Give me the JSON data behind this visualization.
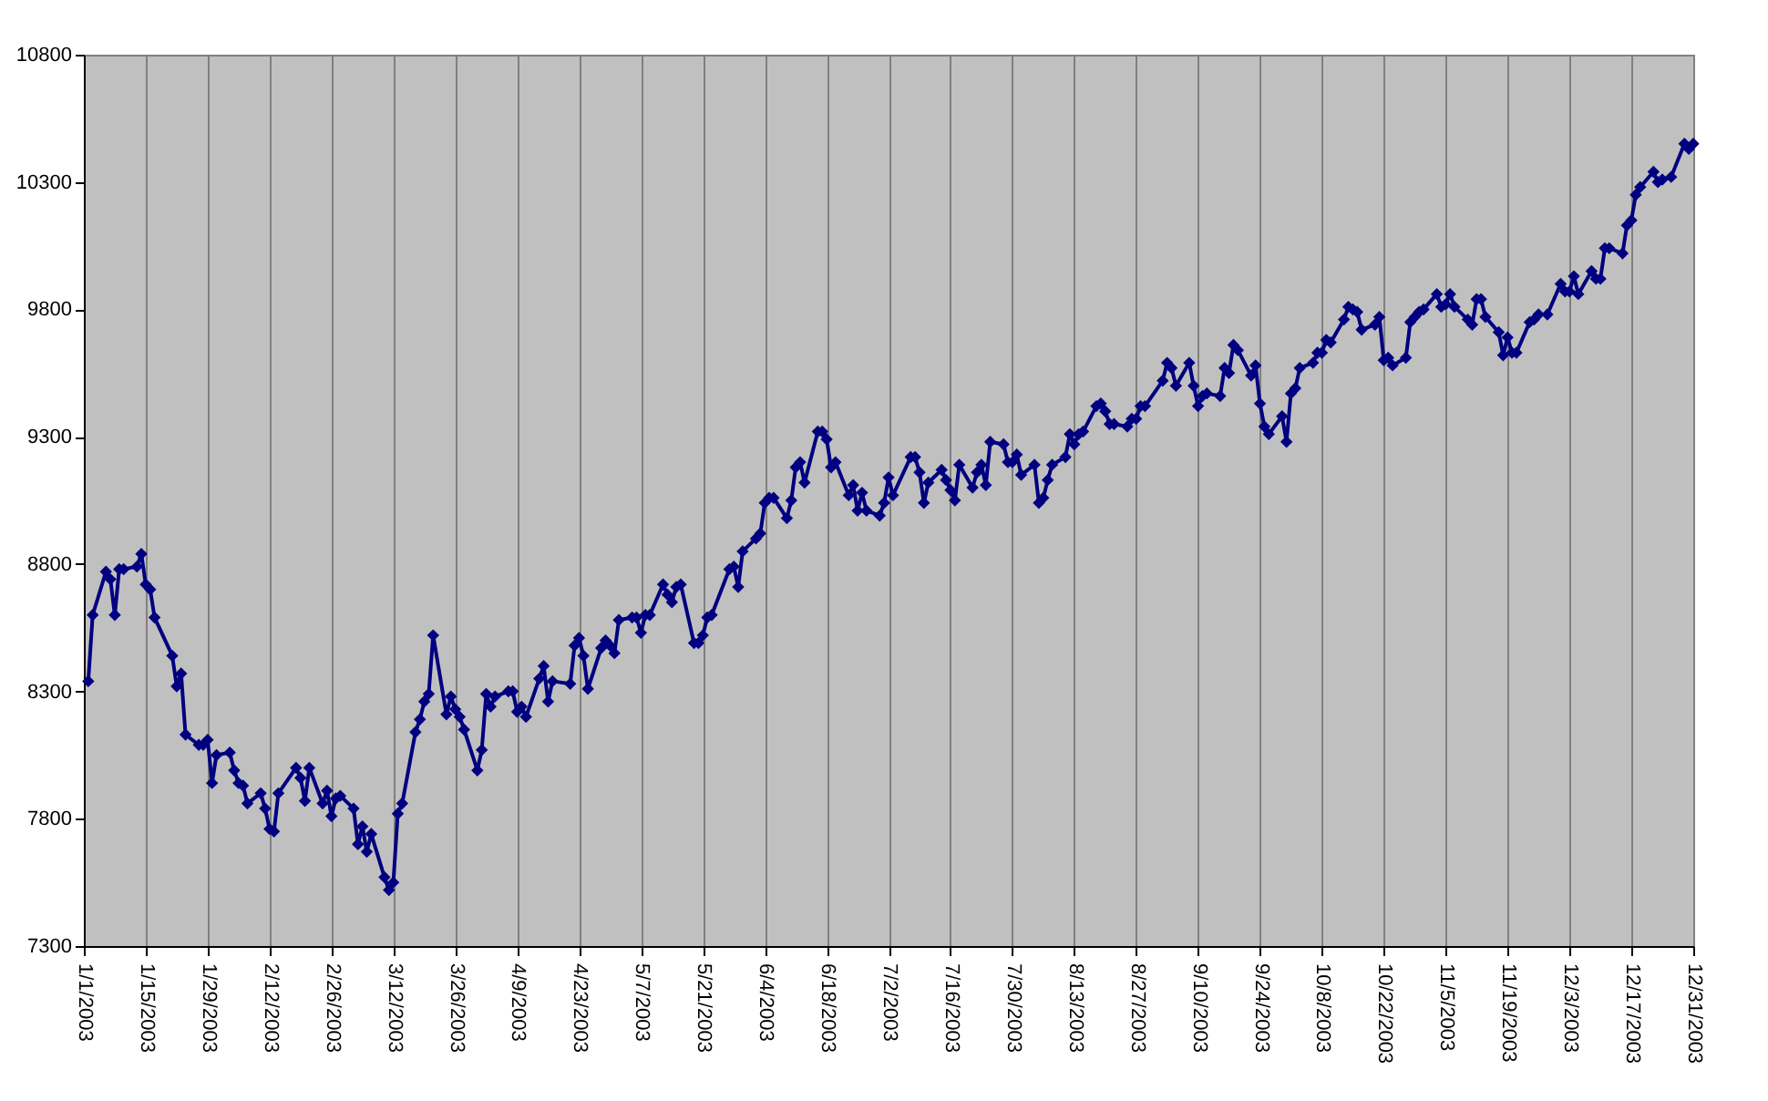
{
  "chart_data": {
    "type": "line",
    "marker": "diamond",
    "line_style": "solid",
    "grid": "x",
    "xlim": [
      "2003-01-01",
      "2003-12-31"
    ],
    "xticks": [
      {
        "value": "2003-01-01",
        "label": "1/1/2003"
      },
      {
        "value": "2003-01-15",
        "label": "1/15/2003"
      },
      {
        "value": "2003-01-29",
        "label": "1/29/2003"
      },
      {
        "value": "2003-02-12",
        "label": "2/12/2003"
      },
      {
        "value": "2003-02-26",
        "label": "2/26/2003"
      },
      {
        "value": "2003-03-12",
        "label": "3/12/2003"
      },
      {
        "value": "2003-03-26",
        "label": "3/26/2003"
      },
      {
        "value": "2003-04-09",
        "label": "4/9/2003"
      },
      {
        "value": "2003-04-23",
        "label": "4/23/2003"
      },
      {
        "value": "2003-05-07",
        "label": "5/7/2003"
      },
      {
        "value": "2003-05-21",
        "label": "5/21/2003"
      },
      {
        "value": "2003-06-04",
        "label": "6/4/2003"
      },
      {
        "value": "2003-06-18",
        "label": "6/18/2003"
      },
      {
        "value": "2003-07-02",
        "label": "7/2/2003"
      },
      {
        "value": "2003-07-16",
        "label": "7/16/2003"
      },
      {
        "value": "2003-07-30",
        "label": "7/30/2003"
      },
      {
        "value": "2003-08-13",
        "label": "8/13/2003"
      },
      {
        "value": "2003-08-27",
        "label": "8/27/2003"
      },
      {
        "value": "2003-09-10",
        "label": "9/10/2003"
      },
      {
        "value": "2003-09-24",
        "label": "9/24/2003"
      },
      {
        "value": "2003-10-08",
        "label": "10/8/2003"
      },
      {
        "value": "2003-10-22",
        "label": "10/22/2003"
      },
      {
        "value": "2003-11-05",
        "label": "11/5/2003"
      },
      {
        "value": "2003-11-19",
        "label": "11/19/2003"
      },
      {
        "value": "2003-12-03",
        "label": "12/3/2003"
      },
      {
        "value": "2003-12-17",
        "label": "12/17/2003"
      },
      {
        "value": "2003-12-31",
        "label": "12/31/2003"
      }
    ],
    "ylim": [
      7300,
      10800
    ],
    "yticks": [
      7300,
      7800,
      8300,
      8800,
      9300,
      9800,
      10300,
      10800
    ],
    "series": [
      {
        "color": "#000080",
        "x": [
          "2003-01-02",
          "2003-01-03",
          "2003-01-06",
          "2003-01-07",
          "2003-01-08",
          "2003-01-09",
          "2003-01-10",
          "2003-01-13",
          "2003-01-14",
          "2003-01-15",
          "2003-01-16",
          "2003-01-17",
          "2003-01-21",
          "2003-01-22",
          "2003-01-23",
          "2003-01-24",
          "2003-01-27",
          "2003-01-28",
          "2003-01-29",
          "2003-01-30",
          "2003-01-31",
          "2003-02-03",
          "2003-02-04",
          "2003-02-05",
          "2003-02-06",
          "2003-02-07",
          "2003-02-10",
          "2003-02-11",
          "2003-02-12",
          "2003-02-13",
          "2003-02-14",
          "2003-02-18",
          "2003-02-19",
          "2003-02-20",
          "2003-02-21",
          "2003-02-24",
          "2003-02-25",
          "2003-02-26",
          "2003-02-27",
          "2003-02-28",
          "2003-03-03",
          "2003-03-04",
          "2003-03-05",
          "2003-03-06",
          "2003-03-07",
          "2003-03-10",
          "2003-03-11",
          "2003-03-12",
          "2003-03-13",
          "2003-03-14",
          "2003-03-17",
          "2003-03-18",
          "2003-03-19",
          "2003-03-20",
          "2003-03-21",
          "2003-03-24",
          "2003-03-25",
          "2003-03-26",
          "2003-03-27",
          "2003-03-28",
          "2003-03-31",
          "2003-04-01",
          "2003-04-02",
          "2003-04-03",
          "2003-04-04",
          "2003-04-07",
          "2003-04-08",
          "2003-04-09",
          "2003-04-10",
          "2003-04-11",
          "2003-04-14",
          "2003-04-15",
          "2003-04-16",
          "2003-04-17",
          "2003-04-21",
          "2003-04-22",
          "2003-04-23",
          "2003-04-24",
          "2003-04-25",
          "2003-04-28",
          "2003-04-29",
          "2003-04-30",
          "2003-05-01",
          "2003-05-02",
          "2003-05-05",
          "2003-05-06",
          "2003-05-07",
          "2003-05-08",
          "2003-05-09",
          "2003-05-12",
          "2003-05-13",
          "2003-05-14",
          "2003-05-15",
          "2003-05-16",
          "2003-05-19",
          "2003-05-20",
          "2003-05-21",
          "2003-05-22",
          "2003-05-23",
          "2003-05-27",
          "2003-05-28",
          "2003-05-29",
          "2003-05-30",
          "2003-06-02",
          "2003-06-03",
          "2003-06-04",
          "2003-06-05",
          "2003-06-06",
          "2003-06-09",
          "2003-06-10",
          "2003-06-11",
          "2003-06-12",
          "2003-06-13",
          "2003-06-16",
          "2003-06-17",
          "2003-06-18",
          "2003-06-19",
          "2003-06-20",
          "2003-06-23",
          "2003-06-24",
          "2003-06-25",
          "2003-06-26",
          "2003-06-27",
          "2003-06-30",
          "2003-07-01",
          "2003-07-02",
          "2003-07-03",
          "2003-07-07",
          "2003-07-08",
          "2003-07-09",
          "2003-07-10",
          "2003-07-11",
          "2003-07-14",
          "2003-07-15",
          "2003-07-16",
          "2003-07-17",
          "2003-07-18",
          "2003-07-21",
          "2003-07-22",
          "2003-07-23",
          "2003-07-24",
          "2003-07-25",
          "2003-07-28",
          "2003-07-29",
          "2003-07-30",
          "2003-07-31",
          "2003-08-01",
          "2003-08-04",
          "2003-08-05",
          "2003-08-06",
          "2003-08-07",
          "2003-08-08",
          "2003-08-11",
          "2003-08-12",
          "2003-08-13",
          "2003-08-14",
          "2003-08-15",
          "2003-08-18",
          "2003-08-19",
          "2003-08-20",
          "2003-08-21",
          "2003-08-22",
          "2003-08-25",
          "2003-08-26",
          "2003-08-27",
          "2003-08-28",
          "2003-08-29",
          "2003-09-02",
          "2003-09-03",
          "2003-09-04",
          "2003-09-05",
          "2003-09-08",
          "2003-09-09",
          "2003-09-10",
          "2003-09-11",
          "2003-09-12",
          "2003-09-15",
          "2003-09-16",
          "2003-09-17",
          "2003-09-18",
          "2003-09-19",
          "2003-09-22",
          "2003-09-23",
          "2003-09-24",
          "2003-09-25",
          "2003-09-26",
          "2003-09-29",
          "2003-09-30",
          "2003-10-01",
          "2003-10-02",
          "2003-10-03",
          "2003-10-06",
          "2003-10-07",
          "2003-10-08",
          "2003-10-09",
          "2003-10-10",
          "2003-10-13",
          "2003-10-14",
          "2003-10-15",
          "2003-10-16",
          "2003-10-17",
          "2003-10-20",
          "2003-10-21",
          "2003-10-22",
          "2003-10-23",
          "2003-10-24",
          "2003-10-27",
          "2003-10-28",
          "2003-10-29",
          "2003-10-30",
          "2003-10-31",
          "2003-11-03",
          "2003-11-04",
          "2003-11-05",
          "2003-11-06",
          "2003-11-07",
          "2003-11-10",
          "2003-11-11",
          "2003-11-12",
          "2003-11-13",
          "2003-11-14",
          "2003-11-17",
          "2003-11-18",
          "2003-11-19",
          "2003-11-20",
          "2003-11-21",
          "2003-11-24",
          "2003-11-25",
          "2003-11-26",
          "2003-11-28",
          "2003-12-01",
          "2003-12-02",
          "2003-12-03",
          "2003-12-04",
          "2003-12-05",
          "2003-12-08",
          "2003-12-09",
          "2003-12-10",
          "2003-12-11",
          "2003-12-12",
          "2003-12-15",
          "2003-12-16",
          "2003-12-17",
          "2003-12-18",
          "2003-12-19",
          "2003-12-22",
          "2003-12-23",
          "2003-12-24",
          "2003-12-26",
          "2003-12-29",
          "2003-12-30",
          "2003-12-31"
        ],
        "values": [
          8340,
          8600,
          8770,
          8740,
          8600,
          8780,
          8780,
          8790,
          8840,
          8720,
          8700,
          8590,
          8440,
          8320,
          8370,
          8130,
          8090,
          8090,
          8110,
          7940,
          8050,
          8060,
          7990,
          7940,
          7930,
          7860,
          7900,
          7840,
          7760,
          7750,
          7900,
          8000,
          7960,
          7870,
          8000,
          7860,
          7910,
          7810,
          7880,
          7890,
          7840,
          7700,
          7770,
          7670,
          7740,
          7570,
          7520,
          7550,
          7820,
          7860,
          8140,
          8190,
          8260,
          8290,
          8520,
          8210,
          8280,
          8230,
          8200,
          8150,
          7990,
          8070,
          8290,
          8240,
          8280,
          8300,
          8300,
          8220,
          8240,
          8200,
          8350,
          8400,
          8260,
          8340,
          8330,
          8480,
          8510,
          8440,
          8310,
          8470,
          8500,
          8480,
          8450,
          8580,
          8590,
          8590,
          8530,
          8600,
          8600,
          8720,
          8680,
          8650,
          8710,
          8720,
          8490,
          8490,
          8520,
          8590,
          8600,
          8780,
          8790,
          8710,
          8850,
          8900,
          8920,
          9040,
          9060,
          9060,
          8980,
          9050,
          9180,
          9200,
          9120,
          9320,
          9320,
          9290,
          9180,
          9200,
          9070,
          9110,
          9010,
          9080,
          9010,
          8990,
          9040,
          9140,
          9070,
          9220,
          9220,
          9160,
          9040,
          9120,
          9170,
          9130,
          9090,
          9050,
          9190,
          9100,
          9160,
          9190,
          9110,
          9280,
          9270,
          9200,
          9200,
          9230,
          9150,
          9190,
          9040,
          9060,
          9130,
          9190,
          9220,
          9310,
          9270,
          9310,
          9320,
          9420,
          9430,
          9400,
          9350,
          9350,
          9340,
          9370,
          9370,
          9420,
          9420,
          9520,
          9590,
          9570,
          9500,
          9590,
          9500,
          9420,
          9460,
          9470,
          9460,
          9570,
          9550,
          9660,
          9640,
          9540,
          9580,
          9430,
          9340,
          9310,
          9380,
          9280,
          9470,
          9490,
          9570,
          9590,
          9630,
          9630,
          9680,
          9670,
          9760,
          9810,
          9800,
          9790,
          9720,
          9740,
          9770,
          9600,
          9610,
          9580,
          9610,
          9750,
          9770,
          9790,
          9800,
          9860,
          9810,
          9820,
          9860,
          9810,
          9760,
          9740,
          9840,
          9840,
          9770,
          9710,
          9620,
          9690,
          9630,
          9630,
          9750,
          9760,
          9780,
          9780,
          9900,
          9870,
          9870,
          9930,
          9860,
          9950,
          9920,
          9920,
          10040,
          10040,
          10020,
          10130,
          10150,
          10250,
          10280,
          10340,
          10300,
          10310,
          10320,
          10450,
          10430,
          10450
        ]
      }
    ]
  }
}
